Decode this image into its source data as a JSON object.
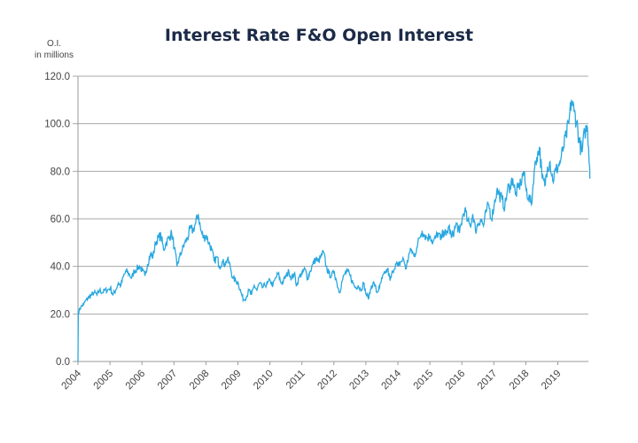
{
  "chart_data": {
    "type": "line",
    "title": "Interest Rate F&O Open Interest",
    "ylabel_line1": "O.I.",
    "ylabel_line2": "in millions",
    "xlabel": "",
    "ylim": [
      0,
      120
    ],
    "xlim": [
      2004,
      2019.8
    ],
    "grid": true,
    "y_ticks": [
      "0.0",
      "20.0",
      "40.0",
      "60.0",
      "80.0",
      "100.0",
      "120.0"
    ],
    "y_tick_values": [
      0,
      20,
      40,
      60,
      80,
      100,
      120
    ],
    "x_ticks": [
      "2004",
      "2005",
      "2006",
      "2007",
      "2008",
      "2009",
      "2010",
      "2011",
      "2012",
      "2013",
      "2014",
      "2015",
      "2016",
      "2017",
      "2018",
      "2019"
    ],
    "line_color": "#29a8e0",
    "series": [
      {
        "name": "Open Interest",
        "start_year": 2004,
        "points_per_year": 12,
        "first_value": 0,
        "values": [
          21,
          23,
          24,
          26,
          27,
          28,
          29,
          28,
          30,
          29,
          30,
          30,
          31,
          28,
          30,
          33,
          32,
          36,
          38,
          37,
          35,
          38,
          39,
          40,
          38,
          36,
          41,
          45,
          44,
          50,
          52,
          53,
          47,
          50,
          52,
          54,
          48,
          40,
          44,
          47,
          50,
          52,
          56,
          55,
          58,
          62,
          55,
          52,
          53,
          50,
          47,
          42,
          44,
          40,
          42,
          41,
          43,
          40,
          35,
          34,
          33,
          29,
          26,
          27,
          30,
          28,
          32,
          30,
          33,
          31,
          32,
          33,
          34,
          32,
          35,
          37,
          33,
          34,
          36,
          38,
          35,
          37,
          32,
          36,
          37,
          39,
          35,
          38,
          41,
          43,
          42,
          44,
          46,
          40,
          37,
          36,
          38,
          33,
          29,
          34,
          37,
          38,
          36,
          33,
          31,
          32,
          30,
          33,
          28,
          27,
          32,
          33,
          29,
          31,
          35,
          37,
          39,
          34,
          38,
          41,
          40,
          42,
          43,
          39,
          45,
          47,
          44,
          48,
          52,
          55,
          53,
          52,
          53,
          50,
          52,
          54,
          51,
          55,
          53,
          57,
          52,
          55,
          58,
          54,
          60,
          64,
          59,
          57,
          62,
          55,
          58,
          60,
          57,
          63,
          66,
          60,
          66,
          72,
          70,
          68,
          65,
          72,
          74,
          77,
          70,
          73,
          75,
          80,
          72,
          69,
          66,
          80,
          86,
          90,
          77,
          74,
          82,
          84,
          76,
          80,
          82,
          85,
          90,
          95,
          100,
          110,
          105,
          101,
          92,
          88,
          97,
          98,
          80
        ]
      }
    ]
  }
}
